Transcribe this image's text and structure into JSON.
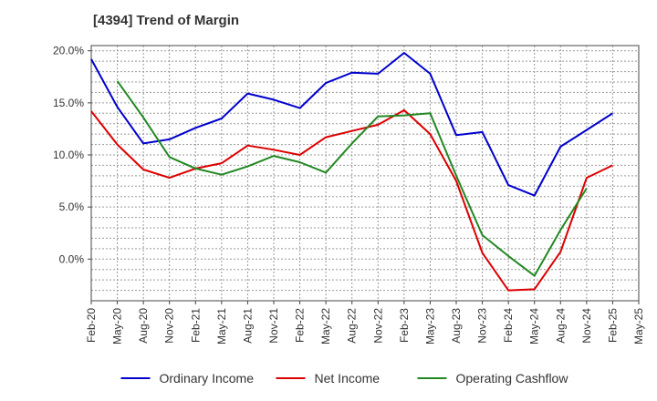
{
  "chart_data": {
    "type": "line",
    "title": "[4394]  Trend of Margin",
    "xlabel": "",
    "ylabel": "",
    "x": [
      "Feb-20",
      "May-20",
      "Aug-20",
      "Nov-20",
      "Feb-21",
      "May-21",
      "Aug-21",
      "Nov-21",
      "Feb-22",
      "May-22",
      "Aug-22",
      "Nov-22",
      "Feb-23",
      "May-23",
      "Aug-23",
      "Nov-23",
      "Feb-24",
      "May-24",
      "Aug-24",
      "Nov-24",
      "Feb-25",
      "May-25"
    ],
    "yticks": [
      {
        "value": 20,
        "label": "20.0%"
      },
      {
        "value": 15,
        "label": "15.0%"
      },
      {
        "value": 10,
        "label": "10.0%"
      },
      {
        "value": 5,
        "label": "5.0%"
      },
      {
        "value": 0,
        "label": "0.0%"
      }
    ],
    "ylim": [
      -4,
      20.5
    ],
    "grid": true,
    "legend_position": "bottom",
    "series": [
      {
        "name": "Ordinary Income",
        "color": "#0000cc",
        "values": [
          19.2,
          14.6,
          11.1,
          11.5,
          12.6,
          13.5,
          15.9,
          15.3,
          14.5,
          16.9,
          17.9,
          17.8,
          19.8,
          17.8,
          11.9,
          12.2,
          7.1,
          6.1,
          10.8,
          12.4,
          14.0,
          null
        ]
      },
      {
        "name": "Net Income",
        "color": "#dd0000",
        "values": [
          14.2,
          11.0,
          8.6,
          7.8,
          8.7,
          9.2,
          10.9,
          10.5,
          10.0,
          11.7,
          12.3,
          12.9,
          14.3,
          12.0,
          7.5,
          0.6,
          -3.0,
          -2.9,
          0.7,
          7.8,
          9.0,
          null
        ]
      },
      {
        "name": "Operating Cashflow",
        "color": "#228822",
        "values": [
          null,
          17.1,
          13.6,
          9.8,
          8.7,
          8.1,
          8.9,
          9.9,
          9.3,
          8.3,
          11.1,
          13.7,
          13.8,
          14.0,
          8.0,
          2.3,
          0.3,
          -1.6,
          2.8,
          6.8,
          null,
          null
        ]
      }
    ]
  }
}
